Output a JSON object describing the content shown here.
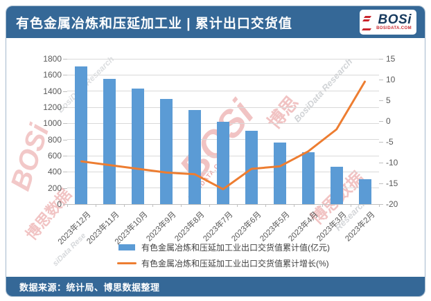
{
  "header": {
    "title": "有色金属冶炼和压延加工业 | 累计出口交货值",
    "logo": {
      "text": "BOSi",
      "subtext": "BOSIDATA.COM"
    }
  },
  "footer": {
    "source": "数据来源：统计局、博思数据整理"
  },
  "colors": {
    "banner_blue": "#356897",
    "bar_blue": "#5b9bd5",
    "line_orange": "#ed7d31",
    "gridline": "#d9d9d9",
    "axis_text": "#595959",
    "logo_navy": "#173a5e",
    "logo_red": "#c9252c"
  },
  "chart_data": {
    "type": "bar",
    "title": "有色金属冶炼和压延加工业 | 累计出口交货值",
    "categories": [
      "2023年12月",
      "2023年11月",
      "2023年10月",
      "2023年9月",
      "2023年8月",
      "2023年7月",
      "2023年6月",
      "2023年5月",
      "2023年4月",
      "2023年3月",
      "2023年2月"
    ],
    "series": [
      {
        "name": "有色金属冶炼和压延加工业出口交货值累计值(亿元)",
        "type": "bar",
        "axis": "left",
        "color": "#5b9bd5",
        "values": [
          1705,
          1555,
          1430,
          1305,
          1165,
          1020,
          905,
          765,
          640,
          465,
          305
        ]
      },
      {
        "name": "有色金属冶炼和压延加工业出口交货值累计增长(%)",
        "type": "line",
        "axis": "right",
        "color": "#ed7d31",
        "values": [
          -9.7,
          -10.6,
          -11.5,
          -12.4,
          -12.8,
          -16.4,
          -11.5,
          -10.9,
          -7.3,
          -2.0,
          9.5
        ]
      }
    ],
    "left_axis": {
      "min": 0,
      "max": 1800,
      "step": 200
    },
    "right_axis": {
      "min": -20,
      "max": 15,
      "step": 5
    },
    "grid": true,
    "legend_position": "bottom"
  },
  "watermarks": [
    {
      "text": "BOSi",
      "cls": "wm0 wm-red"
    },
    {
      "text": "BOSIDATA.COM",
      "cls": "wm1 wm-red"
    },
    {
      "text": "博思",
      "cls": "wm2 wm-red"
    },
    {
      "text": "BosiData Research",
      "cls": "wm3 wm-gray"
    },
    {
      "text": "BOSi",
      "cls": "wm4 wm-red"
    },
    {
      "text": "博思数据",
      "cls": "wm5 wm-red"
    },
    {
      "text": "siData Rese",
      "cls": "wm6 wm-gray"
    },
    {
      "text": "博思数据",
      "cls": "wm7 wm-red"
    },
    {
      "text": "Research",
      "cls": "wm8 wm-gray"
    },
    {
      "text": "BosiData Research",
      "cls": "wm9 wm-gray"
    }
  ]
}
